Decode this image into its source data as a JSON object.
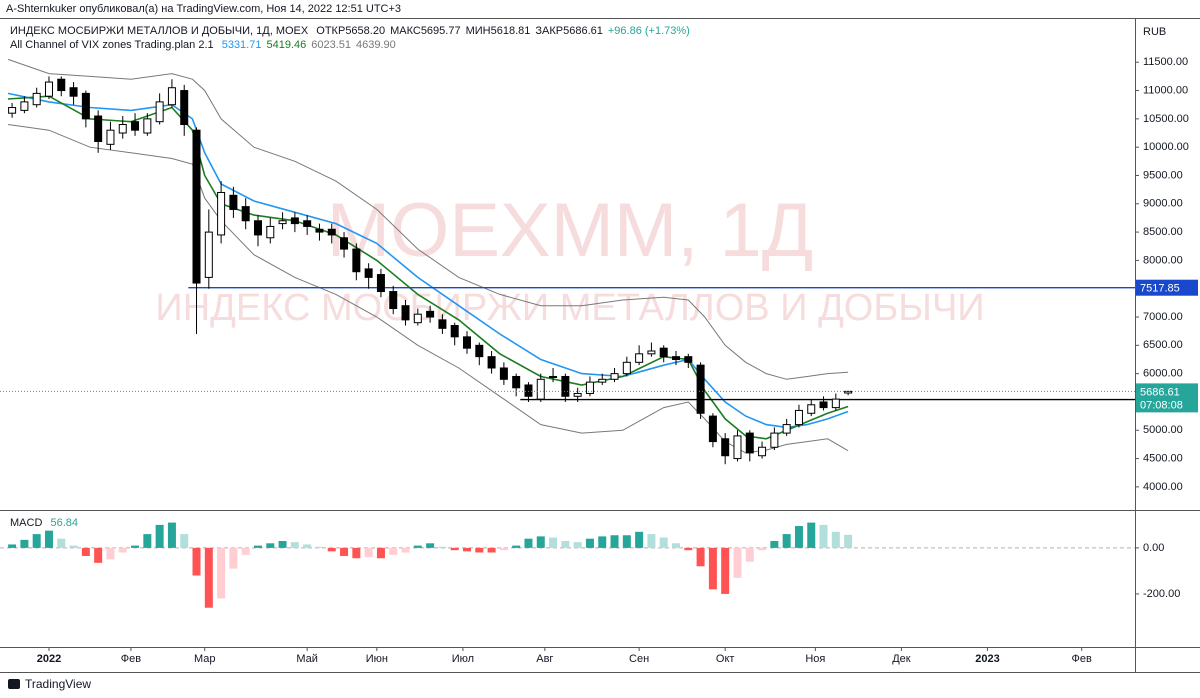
{
  "header": {
    "publisher": "A-Shternkuker опубликовал(а) на TradingView.com, Ноя 14, 2022 12:51 UTC+3",
    "brand": "TradingView"
  },
  "chart_data": [
    {
      "type": "candlestick",
      "symbol": "ИНДЕКС МОСБИРЖИ МЕТАЛЛОВ И ДОБЫЧИ, 1Д, MOEX",
      "ohlc": {
        "labels": [
          "ОТКР",
          "МАКС",
          "МИН",
          "ЗАКР"
        ],
        "value_labels": [
          "5658.20",
          "5695.77",
          "5618.81",
          "5686.61"
        ]
      },
      "change": "+96.86 (+1.73%)",
      "currency": "RUB",
      "countdown": "07:08:08",
      "watermark": [
        "MOEXMM, 1Д",
        "ИНДЕКС МОСБИРЖИ МЕТАЛЛОВ И ДОБЫЧИ"
      ],
      "up_color": "#ffffff",
      "down_color": "#000000",
      "close_color": "#26a69a",
      "xlim": [
        0,
        275
      ],
      "ylim": [
        3627,
        12246
      ],
      "yticks": [
        {
          "value": 4000,
          "label": "4000.00"
        },
        {
          "value": 4500,
          "label": "4500.00"
        },
        {
          "value": 5000,
          "label": "5000.00"
        },
        {
          "value": 5500,
          "label": "5500.00"
        },
        {
          "value": 6000,
          "label": "6000.00"
        },
        {
          "value": 6500,
          "label": "6500.00"
        },
        {
          "value": 7000,
          "label": "7000.00"
        },
        {
          "value": 7500,
          "label": "7500.00"
        },
        {
          "value": 8000,
          "label": "8000.00"
        },
        {
          "value": 8500,
          "label": "8500.00"
        },
        {
          "value": 9000,
          "label": "9000.00"
        },
        {
          "value": 9500,
          "label": "9500.00"
        },
        {
          "value": 10000,
          "label": "10000.00"
        },
        {
          "value": 10500,
          "label": "10500.00"
        },
        {
          "value": 11000,
          "label": "11000.00"
        },
        {
          "value": 11500,
          "label": "11500.00"
        }
      ],
      "x": [
        1,
        4,
        7,
        10,
        13,
        16,
        19,
        22,
        25,
        28,
        31,
        34,
        37,
        40,
        43,
        46,
        49,
        52,
        55,
        58,
        61,
        64,
        67,
        70,
        73,
        76,
        79,
        82,
        85,
        88,
        91,
        94,
        97,
        100,
        103,
        106,
        109,
        112,
        115,
        118,
        121,
        124,
        127,
        130,
        133,
        136,
        139,
        142,
        145,
        148,
        151,
        154,
        157,
        160,
        163,
        166,
        169,
        172,
        175,
        178,
        181,
        184,
        187,
        190,
        193,
        196,
        199,
        202,
        205
      ],
      "open": [
        10600,
        10650,
        10750,
        10900,
        11200,
        11050,
        10950,
        10550,
        10050,
        10250,
        10450,
        10250,
        10450,
        10750,
        11000,
        10300,
        7700,
        8450,
        9150,
        8950,
        8700,
        8400,
        8650,
        8750,
        8700,
        8550,
        8550,
        8400,
        8200,
        7850,
        7750,
        7450,
        7200,
        6900,
        7100,
        6950,
        6850,
        6650,
        6500,
        6300,
        6100,
        5950,
        5800,
        5550,
        5950,
        5950,
        5600,
        5650,
        5850,
        5900,
        6000,
        6200,
        6350,
        6450,
        6300,
        6300,
        6150,
        5250,
        4850,
        4500,
        4950,
        4550,
        4700,
        4950,
        5100,
        5300,
        5500,
        5400,
        5658.2
      ],
      "high": [
        10780,
        10900,
        11050,
        11250,
        11250,
        11150,
        11000,
        10650,
        10450,
        10550,
        10600,
        10600,
        10950,
        11200,
        11100,
        10350,
        8900,
        9400,
        9300,
        9100,
        8800,
        8750,
        8850,
        8850,
        8800,
        8650,
        8650,
        8500,
        8300,
        7950,
        7850,
        7550,
        7300,
        7150,
        7200,
        7050,
        6900,
        6750,
        6550,
        6400,
        6200,
        6000,
        5850,
        6000,
        6100,
        6000,
        5750,
        5950,
        6000,
        6100,
        6300,
        6500,
        6550,
        6500,
        6400,
        6350,
        6200,
        5300,
        4950,
        5000,
        5000,
        4800,
        5050,
        5200,
        5450,
        5550,
        5600,
        5650,
        5695.77
      ],
      "low": [
        10520,
        10600,
        10700,
        10850,
        10900,
        10750,
        10350,
        9900,
        9950,
        10150,
        10200,
        10200,
        10400,
        10700,
        10200,
        6700,
        7500,
        8300,
        8750,
        8550,
        8250,
        8300,
        8550,
        8500,
        8450,
        8350,
        8300,
        8050,
        7650,
        7500,
        7350,
        7050,
        6850,
        6850,
        6900,
        6700,
        6500,
        6350,
        6150,
        6000,
        5800,
        5600,
        5500,
        5500,
        5850,
        5500,
        5500,
        5600,
        5800,
        5850,
        5950,
        6150,
        6300,
        6200,
        6150,
        6100,
        5200,
        4700,
        4400,
        4450,
        4450,
        4500,
        4650,
        4900,
        5050,
        5250,
        5350,
        5350,
        5618.81
      ],
      "close": [
        10700,
        10800,
        10950,
        11150,
        11000,
        10900,
        10500,
        10100,
        10300,
        10400,
        10300,
        10500,
        10800,
        11050,
        10400,
        7600,
        8500,
        9200,
        8900,
        8700,
        8450,
        8600,
        8700,
        8650,
        8600,
        8500,
        8450,
        8200,
        7800,
        7700,
        7450,
        7150,
        6950,
        7050,
        7000,
        6800,
        6650,
        6450,
        6300,
        6100,
        5900,
        5750,
        5600,
        5900,
        5950,
        5600,
        5650,
        5850,
        5900,
        6000,
        6200,
        6350,
        6400,
        6300,
        6250,
        6200,
        5300,
        4800,
        4550,
        4900,
        4600,
        4700,
        4950,
        5100,
        5350,
        5450,
        5400,
        5550,
        5686.61
      ],
      "indicator": {
        "name": "All Channel of VIX zones Trading.plan 2.1",
        "value_labels": [
          "5331.71",
          "5419.46",
          "6023.51",
          "4639.90"
        ],
        "lines": [
          {
            "color": "#2196f3",
            "x": [
              0,
              10,
              20,
              30,
              40,
              45,
              48,
              52,
              60,
              70,
              80,
              90,
              100,
              110,
              120,
              130,
              140,
              150,
              160,
              166,
              170,
              175,
              180,
              185,
              190,
              195,
              200,
              205
            ],
            "values": [
              10950,
              10800,
              10700,
              10650,
              10750,
              10500,
              9900,
              9350,
              9050,
              8850,
              8650,
              8300,
              7700,
              7200,
              6700,
              6250,
              6000,
              5950,
              6150,
              6250,
              5900,
              5500,
              5250,
              5100,
              5050,
              5100,
              5200,
              5331.71
            ]
          },
          {
            "color": "#1b7d1f",
            "x": [
              0,
              10,
              20,
              30,
              40,
              45,
              48,
              52,
              60,
              70,
              80,
              90,
              100,
              110,
              120,
              130,
              140,
              150,
              160,
              166,
              170,
              175,
              180,
              185,
              190,
              195,
              200,
              205
            ],
            "values": [
              10850,
              10900,
              10500,
              10450,
              10700,
              10300,
              9500,
              9000,
              8800,
              8700,
              8450,
              8000,
              7400,
              6950,
              6350,
              5950,
              5800,
              5950,
              6300,
              6250,
              5700,
              5200,
              4900,
              4850,
              5000,
              5150,
              5300,
              5419.46
            ]
          },
          {
            "color": "#787878",
            "x": [
              0,
              10,
              20,
              30,
              40,
              45,
              48,
              52,
              60,
              70,
              80,
              90,
              100,
              110,
              120,
              130,
              140,
              150,
              160,
              166,
              170,
              175,
              180,
              185,
              190,
              195,
              200,
              205
            ],
            "values": [
              11550,
              11300,
              11250,
              11200,
              11300,
              11200,
              11000,
              10500,
              10000,
              9750,
              9400,
              8900,
              8200,
              7700,
              7400,
              7200,
              7200,
              7300,
              7350,
              7300,
              7000,
              6500,
              6200,
              6000,
              5900,
              5950,
              6000,
              6023.51
            ]
          },
          {
            "color": "#787878",
            "x": [
              0,
              10,
              20,
              30,
              40,
              45,
              48,
              52,
              60,
              70,
              80,
              90,
              100,
              110,
              120,
              130,
              140,
              150,
              160,
              166,
              170,
              175,
              180,
              185,
              190,
              195,
              200,
              205
            ],
            "values": [
              10400,
              10300,
              10000,
              9900,
              9800,
              9700,
              9100,
              8700,
              8100,
              7700,
              7400,
              7000,
              6500,
              6100,
              5600,
              5100,
              4950,
              5000,
              5400,
              5500,
              5200,
              4800,
              4600,
              4650,
              4750,
              4800,
              4850,
              4639.9
            ]
          }
        ]
      },
      "hlines": [
        {
          "value": 7517.85,
          "color": "#1848cc",
          "x_start": 44
        },
        {
          "value": 5541.71,
          "color": "#000000",
          "x_start": 125
        }
      ]
    },
    {
      "type": "bar",
      "title": "MACD",
      "xlim": [
        0,
        275
      ],
      "ylim": [
        -422,
        156
      ],
      "yticks": [
        {
          "value": 0,
          "label": "0.00"
        },
        {
          "value": -200,
          "label": "-200.00"
        }
      ],
      "xticks": [
        {
          "value": 10,
          "label": "2022"
        },
        {
          "value": 30,
          "label": "Фев"
        },
        {
          "value": 48,
          "label": "Мар"
        },
        {
          "value": 73,
          "label": "Май"
        },
        {
          "value": 90,
          "label": "Июн"
        },
        {
          "value": 111,
          "label": "Июл"
        },
        {
          "value": 131,
          "label": "Авг"
        },
        {
          "value": 154,
          "label": "Сен"
        },
        {
          "value": 175,
          "label": "Окт"
        },
        {
          "value": 197,
          "label": "Ноя"
        },
        {
          "value": 218,
          "label": "Дек"
        },
        {
          "value": 239,
          "label": "2023"
        },
        {
          "value": 262,
          "label": "Фев"
        }
      ],
      "colors": {
        "up_rising": "#26a69a",
        "up_falling": "#b2dfdb",
        "down_falling": "#ff5252",
        "down_rising": "#ffcdd2"
      },
      "x": [
        1,
        4,
        7,
        10,
        13,
        16,
        19,
        22,
        25,
        28,
        31,
        34,
        37,
        40,
        43,
        46,
        49,
        52,
        55,
        58,
        61,
        64,
        67,
        70,
        73,
        76,
        79,
        82,
        85,
        88,
        91,
        94,
        97,
        100,
        103,
        106,
        109,
        112,
        115,
        118,
        121,
        124,
        127,
        130,
        133,
        136,
        139,
        142,
        145,
        148,
        151,
        154,
        157,
        160,
        163,
        166,
        169,
        172,
        175,
        178,
        181,
        184,
        187,
        190,
        193,
        196,
        199,
        202,
        205
      ],
      "values": [
        15,
        35,
        60,
        75,
        40,
        10,
        -35,
        -65,
        -50,
        -20,
        10,
        60,
        100,
        110,
        60,
        -120,
        -260,
        -220,
        -90,
        -30,
        10,
        20,
        30,
        25,
        15,
        5,
        -15,
        -35,
        -45,
        -40,
        -45,
        -30,
        -20,
        10,
        20,
        5,
        -10,
        -15,
        -20,
        -20,
        -10,
        10,
        40,
        50,
        45,
        30,
        25,
        40,
        50,
        55,
        55,
        70,
        60,
        45,
        20,
        -10,
        -80,
        -180,
        -200,
        -130,
        -60,
        -10,
        30,
        60,
        95,
        110,
        100,
        70,
        56.84
      ]
    }
  ]
}
